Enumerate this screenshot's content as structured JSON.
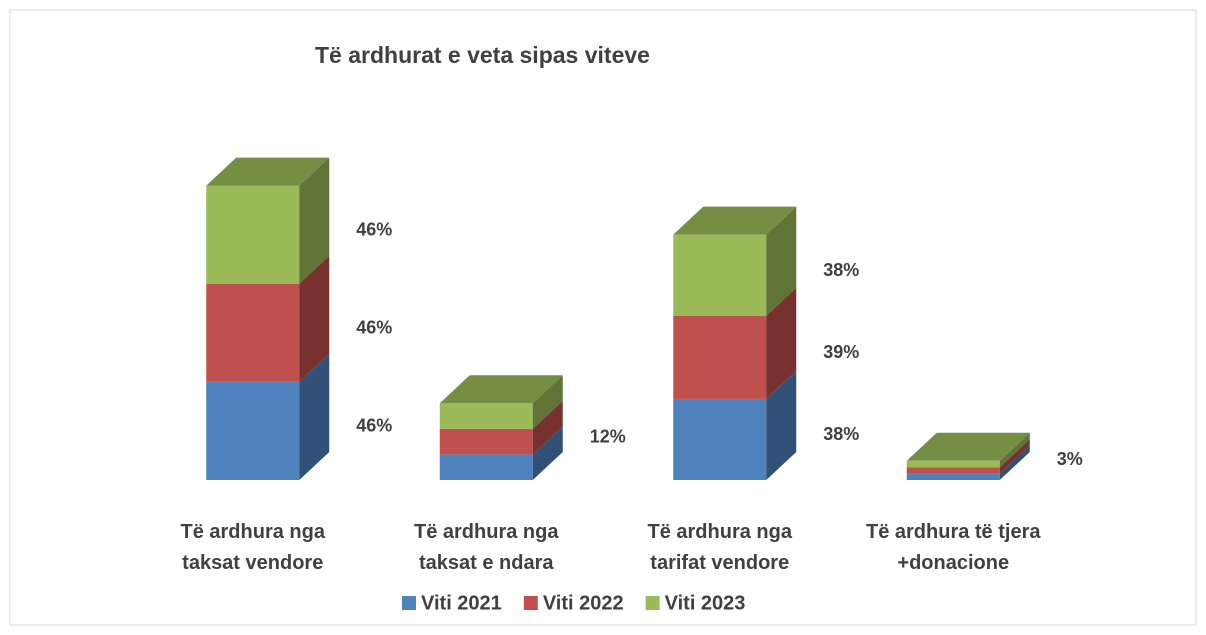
{
  "chart_data": {
    "type": "bar3d_stacked",
    "title": "Të ardhurat e veta sipas viteve",
    "categories": [
      [
        "Të ardhura nga",
        "taksat vendore"
      ],
      [
        "Të ardhura nga",
        "taksat e ndara"
      ],
      [
        "Të ardhura nga",
        "tarifat vendore"
      ],
      [
        "Të ardhura të tjera",
        "+donacione"
      ]
    ],
    "series": [
      {
        "name": "Viti 2021",
        "color": "#4f81bd",
        "values": [
          46,
          12,
          38,
          3
        ],
        "value_labels": [
          "46%",
          null,
          "38%",
          null
        ]
      },
      {
        "name": "Viti 2022",
        "color": "#c0504d",
        "values": [
          46,
          12,
          39,
          3
        ],
        "value_labels": [
          "46%",
          "12%",
          "39%",
          null
        ]
      },
      {
        "name": "Viti 2023",
        "color": "#9bbb59",
        "values": [
          46,
          12,
          38,
          3
        ],
        "value_labels": [
          "46%",
          null,
          "38%",
          "3%"
        ]
      }
    ],
    "ylim": [
      0,
      150
    ],
    "legend": "bottom"
  }
}
